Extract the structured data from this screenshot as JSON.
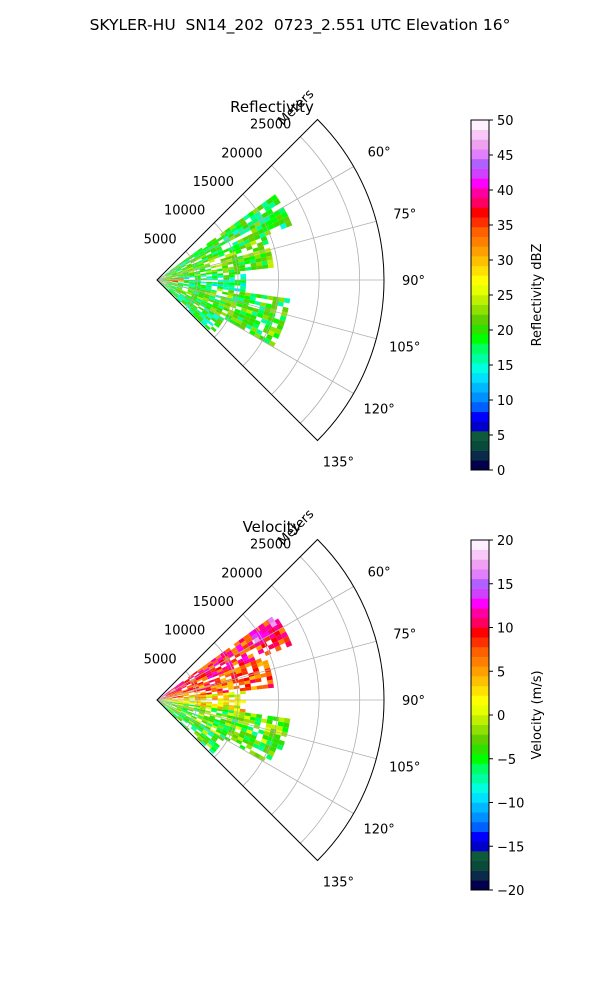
{
  "suptitle": "SKYLER-HU  SN14_202  0723_2.551 UTC Elevation 16°",
  "radial_axis_label": "Meters",
  "colors": {
    "reflectivity": [
      "#02004a",
      "#0a2a4a",
      "#0a4a3a",
      "#0e5a3a",
      "#0000c8",
      "#0000ff",
      "#0060ff",
      "#0090ff",
      "#00b8ff",
      "#00e0ff",
      "#00ffe0",
      "#00ffa0",
      "#00ff60",
      "#00ff00",
      "#30e000",
      "#60d000",
      "#90e000",
      "#c0f000",
      "#e8ff00",
      "#ffff00",
      "#ffe000",
      "#ffc000",
      "#ffa000",
      "#ff8000",
      "#ff6000",
      "#ff3000",
      "#ff0000",
      "#ff0060",
      "#ff00a0",
      "#ff00ff",
      "#d040ff",
      "#b060ff",
      "#e080ff",
      "#f0a0f0",
      "#f8c8f8",
      "#fff0ff"
    ],
    "velocity": [
      "#02004a",
      "#0a2a4a",
      "#0a4a3a",
      "#0e5a3a",
      "#0000c8",
      "#0000ff",
      "#0060ff",
      "#0090ff",
      "#00b8ff",
      "#00e0ff",
      "#00ffe0",
      "#00ffa0",
      "#00ff60",
      "#00ff00",
      "#30e000",
      "#60d000",
      "#90e000",
      "#c0f000",
      "#e8ff00",
      "#ffff00",
      "#ffe000",
      "#ffc000",
      "#ffa000",
      "#ff8000",
      "#ff6000",
      "#ff3000",
      "#ff0000",
      "#ff0060",
      "#ff00a0",
      "#ff00ff",
      "#d040ff",
      "#b060ff",
      "#e080ff",
      "#f0a0f0",
      "#f8c8f8",
      "#fff0ff"
    ]
  },
  "chart_data": [
    {
      "type": "heatmap",
      "projection": "polar-sector",
      "title": "Reflectivity",
      "colorbar_label": "Reflectivity dBZ",
      "color_range": [
        0,
        50
      ],
      "colorbar_ticks": [
        "0",
        "5",
        "10",
        "15",
        "20",
        "25",
        "30",
        "35",
        "40",
        "45",
        "50"
      ],
      "theta_range_deg": [
        45,
        135
      ],
      "theta_ticks": [
        "60°",
        "75°",
        "90°",
        "105°",
        "120°",
        "135°"
      ],
      "r_range_m": [
        0,
        28000
      ],
      "r_ticks": [
        "5000",
        "10000",
        "15000",
        "20000",
        "25000"
      ],
      "grid": true,
      "echo_regions": [
        {
          "az_from": 54,
          "az_to": 68,
          "r_from": 500,
          "r_to": 17500,
          "value": 19
        },
        {
          "az_from": 68,
          "az_to": 84,
          "r_from": 500,
          "r_to": 14000,
          "value": 21
        },
        {
          "az_from": 84,
          "az_to": 98,
          "r_from": 500,
          "r_to": 11000,
          "value": 17
        },
        {
          "az_from": 98,
          "az_to": 120,
          "r_from": 500,
          "r_to": 16500,
          "value": 20
        },
        {
          "az_from": 120,
          "az_to": 133,
          "r_from": 500,
          "r_to": 9000,
          "value": 18
        },
        {
          "az_from": 84,
          "az_to": 96,
          "r_from": 500,
          "r_to": 3000,
          "value": 33
        }
      ]
    },
    {
      "type": "heatmap",
      "projection": "polar-sector",
      "title": "Velocity",
      "colorbar_label": "Velocity (m/s)",
      "color_range": [
        -20,
        20
      ],
      "colorbar_ticks": [
        "−20",
        "−15",
        "−10",
        "−5",
        "0",
        "5",
        "10",
        "15",
        "20"
      ],
      "theta_range_deg": [
        45,
        135
      ],
      "theta_ticks": [
        "60°",
        "75°",
        "90°",
        "105°",
        "120°",
        "135°"
      ],
      "r_range_m": [
        0,
        28000
      ],
      "r_ticks": [
        "5000",
        "10000",
        "15000",
        "20000",
        "25000"
      ],
      "grid": true,
      "echo_regions": [
        {
          "az_from": 54,
          "az_to": 68,
          "r_from": 500,
          "r_to": 17500,
          "value": 9
        },
        {
          "az_from": 68,
          "az_to": 84,
          "r_from": 500,
          "r_to": 14000,
          "value": 7
        },
        {
          "az_from": 84,
          "az_to": 98,
          "r_from": 500,
          "r_to": 11000,
          "value": 2
        },
        {
          "az_from": 98,
          "az_to": 120,
          "r_from": 500,
          "r_to": 16500,
          "value": -3
        },
        {
          "az_from": 120,
          "az_to": 133,
          "r_from": 500,
          "r_to": 9000,
          "value": -4
        },
        {
          "az_from": 54,
          "az_to": 60,
          "r_from": 14000,
          "r_to": 17500,
          "value": 14
        }
      ]
    }
  ]
}
